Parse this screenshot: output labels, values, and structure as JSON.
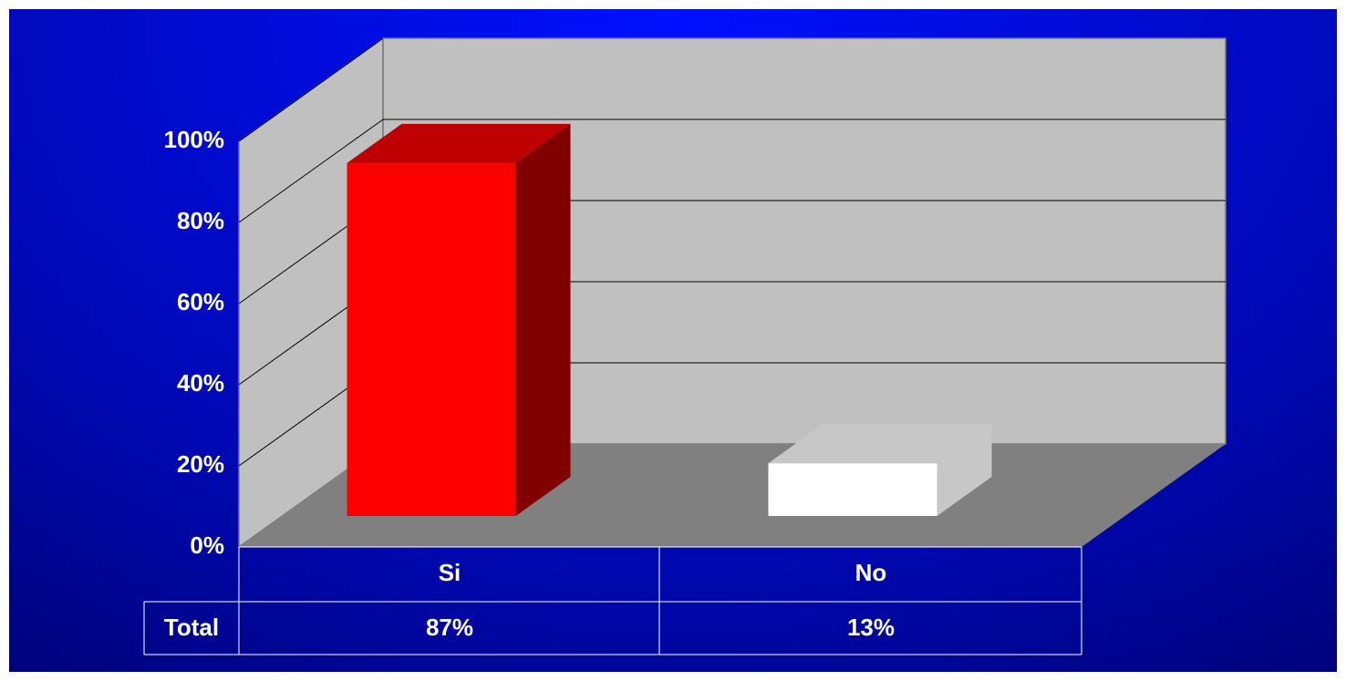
{
  "chart_data": {
    "type": "bar",
    "categories": [
      "Si",
      "No"
    ],
    "series": [
      {
        "name": "Total",
        "colors": [
          "#ff0000",
          "#ffffff"
        ],
        "values": [
          87,
          13
        ],
        "value_labels": [
          "87%",
          "13%"
        ]
      }
    ],
    "ylim": [
      0,
      100
    ],
    "yticks": [
      {
        "value": 0,
        "label": "0%"
      },
      {
        "value": 20,
        "label": "20%"
      },
      {
        "value": 40,
        "label": "40%"
      },
      {
        "value": 60,
        "label": "60%"
      },
      {
        "value": 80,
        "label": "80%"
      },
      {
        "value": 100,
        "label": "100%"
      }
    ],
    "grid": true
  }
}
